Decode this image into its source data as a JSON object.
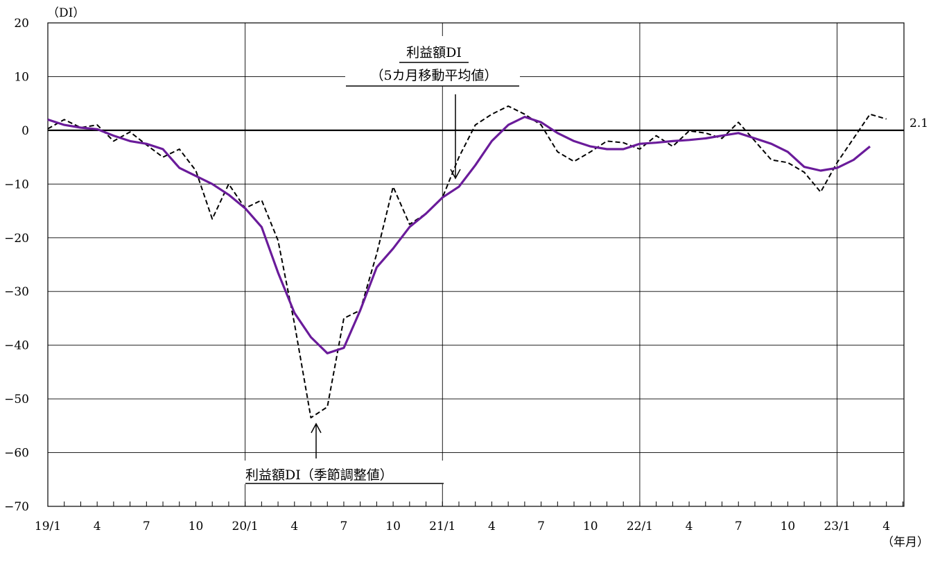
{
  "chart_data": {
    "type": "line",
    "y_unit": "（DI）",
    "x_unit": "（年月）",
    "ylim": [
      -70,
      20
    ],
    "y_ticks": [
      20,
      10,
      0,
      -10,
      -20,
      -30,
      -40,
      -50,
      -60,
      -70
    ],
    "y_tick_labels": [
      "20",
      "10",
      "0",
      "−10",
      "−20",
      "−30",
      "−40",
      "−50",
      "−60",
      "−70"
    ],
    "x_tick_labels": [
      {
        "index": 0,
        "label": "19/1"
      },
      {
        "index": 3,
        "label": "4"
      },
      {
        "index": 6,
        "label": "7"
      },
      {
        "index": 9,
        "label": "10"
      },
      {
        "index": 12,
        "label": "20/1"
      },
      {
        "index": 15,
        "label": "4"
      },
      {
        "index": 18,
        "label": "7"
      },
      {
        "index": 21,
        "label": "10"
      },
      {
        "index": 24,
        "label": "21/1"
      },
      {
        "index": 27,
        "label": "4"
      },
      {
        "index": 30,
        "label": "7"
      },
      {
        "index": 33,
        "label": "10"
      },
      {
        "index": 36,
        "label": "22/1"
      },
      {
        "index": 39,
        "label": "4"
      },
      {
        "index": 42,
        "label": "7"
      },
      {
        "index": 45,
        "label": "10"
      },
      {
        "index": 48,
        "label": "23/1"
      },
      {
        "index": 51,
        "label": "4"
      }
    ],
    "year_gridline_indices": [
      12,
      24,
      36,
      48
    ],
    "grid": true,
    "series": [
      {
        "name": "利益額DI（季節調整値）",
        "style": "dashed",
        "color": "#000000",
        "values": [
          0.3,
          2.0,
          0.5,
          1.0,
          -2.0,
          -0.3,
          -2.7,
          -5.0,
          -3.5,
          -7.5,
          -16.5,
          -10.0,
          -14.5,
          -13.0,
          -20.5,
          -36.0,
          -53.5,
          -51.5,
          -35.0,
          -33.5,
          -23.0,
          -10.5,
          -17.5,
          -15.5,
          -12.5,
          -5.0,
          1.0,
          3.0,
          4.5,
          3.0,
          1.0,
          -4.0,
          -5.8,
          -4.0,
          -2.0,
          -2.3,
          -3.5,
          -1.0,
          -3.0,
          -0.1,
          -0.5,
          -1.5,
          1.5,
          -2.0,
          -5.5,
          -6.0,
          -7.8,
          -11.5,
          -6.0,
          -1.5,
          3.0,
          2.1
        ]
      },
      {
        "name": "利益額DI（5カ月移動平均値）",
        "style": "solid",
        "color": "#6a1b9a",
        "values": [
          2.0,
          1.0,
          0.5,
          0.2,
          -1.0,
          -2.0,
          -2.5,
          -3.5,
          -7.0,
          -8.5,
          -10.0,
          -12.0,
          -14.5,
          -18.0,
          -26.5,
          -34.0,
          -38.5,
          -41.5,
          -40.5,
          -33.5,
          -25.5,
          -22.0,
          -18.0,
          -15.5,
          -12.5,
          -10.5,
          -6.5,
          -2.0,
          1.0,
          2.5,
          1.5,
          -0.5,
          -2.0,
          -3.0,
          -3.5,
          -3.5,
          -2.5,
          -2.3,
          -2.0,
          -1.8,
          -1.5,
          -1.0,
          -0.5,
          -1.5,
          -2.5,
          -4.0,
          -6.8,
          -7.5,
          -7.0,
          -5.5,
          -3.0
        ]
      }
    ],
    "end_label": "2.1",
    "annotations": {
      "ma_title": "利益額DI",
      "ma_subtitle": "（5カ月移動平均値）",
      "sa_label": "利益額DI（季節調整値）"
    }
  }
}
